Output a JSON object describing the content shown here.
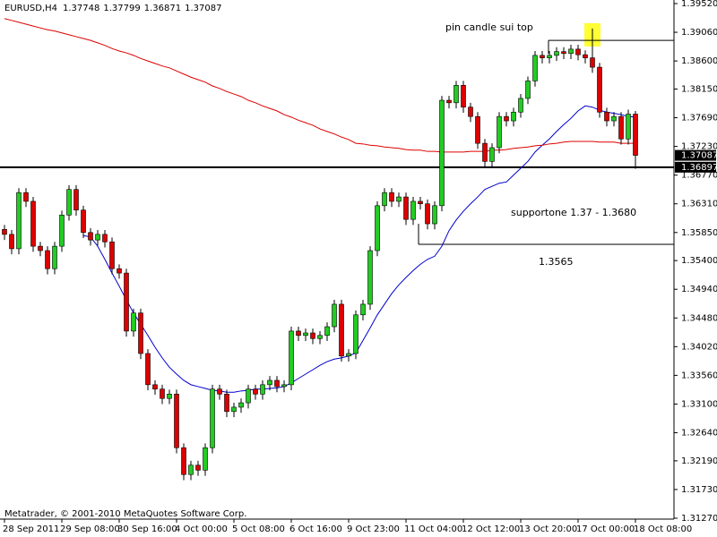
{
  "chart_data": {
    "type": "candlestick",
    "symbol": "EURUSD,H4",
    "footer": "Metatrader, © 2001-2010 MetaQuotes Software Corp.",
    "annotations": [
      "pin candle sui top",
      "supportone 1.37 - 1.3680",
      "1.3565"
    ],
    "categories": [
      "28 Sep 2011",
      null,
      null,
      null,
      null,
      null,
      null,
      null,
      "29 Sep 08:00",
      null,
      null,
      null,
      null,
      null,
      null,
      null,
      "30 Sep 16:00",
      null,
      null,
      null,
      null,
      null,
      null,
      null,
      "4 Oct 00:00",
      null,
      null,
      null,
      null,
      null,
      null,
      null,
      "5 Oct 08:00",
      null,
      null,
      null,
      null,
      null,
      null,
      null,
      "6 Oct 16:00",
      null,
      null,
      null,
      null,
      null,
      null,
      null,
      "9 Oct 23:00",
      null,
      null,
      null,
      null,
      null,
      null,
      null,
      "11 Oct 04:00",
      null,
      null,
      null,
      null,
      null,
      null,
      null,
      "12 Oct 12:00",
      null,
      null,
      null,
      null,
      null,
      null,
      null,
      "13 Oct 20:00",
      null,
      null,
      null,
      null,
      null,
      null,
      null,
      "17 Oct 00:00",
      null,
      null,
      null,
      null,
      null,
      null,
      null,
      "18 Oct 08:00"
    ],
    "open": [
      1.359,
      1.3582,
      1.3559,
      1.3649,
      1.3635,
      1.3563,
      1.3556,
      1.3527,
      1.3563,
      1.3613,
      1.3654,
      1.3621,
      1.3585,
      1.3573,
      1.3582,
      1.357,
      1.3527,
      1.352,
      1.3427,
      1.3456,
      1.3391,
      1.3341,
      1.3334,
      1.3319,
      1.3326,
      1.324,
      1.3197,
      1.3212,
      1.3204,
      1.324,
      1.3334,
      1.3326,
      1.3298,
      1.3305,
      1.3312,
      1.3334,
      1.3326,
      1.3341,
      1.3348,
      1.3338,
      1.3341,
      1.3427,
      1.342,
      1.3424,
      1.3415,
      1.342,
      1.3434,
      1.347,
      1.3387,
      1.3391,
      1.3453,
      1.347,
      1.3556,
      1.3628,
      1.3649,
      1.3635,
      1.3642,
      1.3606,
      1.3635,
      1.3631,
      1.3599,
      1.3628,
      1.3797,
      1.3793,
      1.3821,
      1.3786,
      1.3771,
      1.3728,
      1.3699,
      1.3721,
      1.3771,
      1.3764,
      1.3778,
      1.38,
      1.3828,
      1.3869,
      1.3865,
      1.3869,
      1.3875,
      1.3872,
      1.3879,
      1.387,
      1.3865,
      1.385,
      1.3778,
      1.3764,
      1.3771,
      1.3735,
      1.37748
    ],
    "high": [
      1.3597,
      1.3589,
      1.3656,
      1.3656,
      1.3642,
      1.357,
      1.3563,
      1.357,
      1.362,
      1.3661,
      1.3661,
      1.3628,
      1.3592,
      1.3589,
      1.3589,
      1.3577,
      1.3534,
      1.3527,
      1.3463,
      1.3463,
      1.3398,
      1.3348,
      1.3341,
      1.3333,
      1.3333,
      1.3247,
      1.3219,
      1.3219,
      1.3247,
      1.3341,
      1.3341,
      1.3333,
      1.3312,
      1.3319,
      1.3341,
      1.3341,
      1.3348,
      1.3355,
      1.3355,
      1.3348,
      1.3434,
      1.3434,
      1.3431,
      1.3431,
      1.3427,
      1.3441,
      1.3477,
      1.3477,
      1.3398,
      1.346,
      1.3477,
      1.3563,
      1.3635,
      1.3656,
      1.3656,
      1.3649,
      1.3649,
      1.3642,
      1.3642,
      1.3638,
      1.3635,
      1.3804,
      1.3804,
      1.3828,
      1.3828,
      1.3793,
      1.3778,
      1.3735,
      1.3728,
      1.3778,
      1.3778,
      1.3785,
      1.3807,
      1.3835,
      1.3876,
      1.3876,
      1.3876,
      1.3882,
      1.3882,
      1.3886,
      1.3886,
      1.3877,
      1.3912,
      1.3857,
      1.3785,
      1.3778,
      1.3778,
      1.3782,
      1.37799
    ],
    "low": [
      1.3573,
      1.355,
      1.355,
      1.3626,
      1.3554,
      1.3547,
      1.3518,
      1.3518,
      1.3554,
      1.3604,
      1.3612,
      1.3576,
      1.3564,
      1.3564,
      1.3561,
      1.3518,
      1.3511,
      1.3418,
      1.3418,
      1.3382,
      1.3332,
      1.3325,
      1.331,
      1.331,
      1.3231,
      1.3188,
      1.3188,
      1.3195,
      1.3195,
      1.3231,
      1.3317,
      1.3289,
      1.3289,
      1.3296,
      1.3303,
      1.3317,
      1.3317,
      1.3332,
      1.3329,
      1.3329,
      1.3332,
      1.3411,
      1.3411,
      1.3406,
      1.3406,
      1.3411,
      1.3425,
      1.3378,
      1.3378,
      1.3382,
      1.3444,
      1.3461,
      1.3547,
      1.3619,
      1.3626,
      1.3626,
      1.3597,
      1.3597,
      1.3622,
      1.359,
      1.359,
      1.3619,
      1.3784,
      1.3784,
      1.3777,
      1.3762,
      1.3719,
      1.369,
      1.369,
      1.3712,
      1.3755,
      1.3755,
      1.3769,
      1.3791,
      1.3819,
      1.3856,
      1.3856,
      1.386,
      1.3863,
      1.3863,
      1.3861,
      1.3856,
      1.3841,
      1.3769,
      1.3755,
      1.3755,
      1.3726,
      1.3726,
      1.36871
    ],
    "close": [
      1.3582,
      1.3559,
      1.3649,
      1.3635,
      1.3563,
      1.3556,
      1.3527,
      1.3563,
      1.3613,
      1.3654,
      1.3621,
      1.3585,
      1.3573,
      1.3582,
      1.357,
      1.3527,
      1.352,
      1.3427,
      1.3456,
      1.3391,
      1.3341,
      1.3334,
      1.3319,
      1.3326,
      1.324,
      1.3197,
      1.3212,
      1.3204,
      1.324,
      1.3334,
      1.3326,
      1.3298,
      1.3305,
      1.3312,
      1.3334,
      1.3326,
      1.3341,
      1.3348,
      1.3338,
      1.3341,
      1.3427,
      1.342,
      1.3424,
      1.3415,
      1.342,
      1.3434,
      1.347,
      1.3387,
      1.3391,
      1.3453,
      1.347,
      1.3556,
      1.3628,
      1.3649,
      1.3635,
      1.3642,
      1.3606,
      1.3635,
      1.3631,
      1.3599,
      1.3628,
      1.3797,
      1.3793,
      1.3821,
      1.3786,
      1.3771,
      1.3728,
      1.3699,
      1.3721,
      1.3771,
      1.3764,
      1.3778,
      1.38,
      1.3828,
      1.3869,
      1.3865,
      1.3869,
      1.3875,
      1.3872,
      1.3879,
      1.387,
      1.3865,
      1.385,
      1.3778,
      1.3764,
      1.3771,
      1.3735,
      1.37748,
      1.37087
    ],
    "up_color": "#22cc22",
    "down_color": "#dd0000",
    "lines": [
      {
        "color": "#0000cc",
        "values": [
          null,
          null,
          null,
          null,
          null,
          null,
          null,
          null,
          null,
          null,
          null,
          1.358,
          1.3578,
          1.3563,
          1.3542,
          1.352,
          1.3499,
          1.3477,
          1.3456,
          1.3438,
          1.342,
          1.3401,
          1.3384,
          1.3369,
          1.3358,
          1.3348,
          1.3341,
          1.3338,
          1.3335,
          1.3332,
          1.3331,
          1.3329,
          1.3329,
          1.3331,
          1.3332,
          1.3334,
          1.3334,
          1.3335,
          1.3336,
          1.3338,
          1.3344,
          1.3351,
          1.3358,
          1.3365,
          1.3372,
          1.3378,
          1.3382,
          1.3384,
          1.3387,
          1.3392,
          1.3412,
          1.3432,
          1.3453,
          1.347,
          1.3487,
          1.3501,
          1.3513,
          1.3524,
          1.3534,
          1.3542,
          1.3547,
          1.3563,
          1.3588,
          1.3605,
          1.3619,
          1.3631,
          1.3642,
          1.3654,
          1.3659,
          1.3664,
          1.3666,
          1.3677,
          1.3688,
          1.3699,
          1.3714,
          1.3725,
          1.3735,
          1.3747,
          1.3758,
          1.3768,
          1.378,
          1.3788,
          1.3786,
          1.3781,
          1.3778,
          1.3776,
          1.3774,
          1.3771,
          1.377
        ]
      },
      {
        "color": "#dd0000",
        "values": [
          1.3928,
          1.3925,
          1.3922,
          1.3919,
          1.3916,
          1.3913,
          1.391,
          1.3908,
          1.3905,
          1.3902,
          1.3899,
          1.3896,
          1.3893,
          1.3889,
          1.3885,
          1.388,
          1.3876,
          1.3873,
          1.3869,
          1.3864,
          1.386,
          1.3856,
          1.3852,
          1.3849,
          1.3844,
          1.3839,
          1.3834,
          1.383,
          1.3826,
          1.382,
          1.3816,
          1.3811,
          1.3807,
          1.3803,
          1.3797,
          1.3793,
          1.3788,
          1.3784,
          1.378,
          1.3774,
          1.377,
          1.3765,
          1.3761,
          1.3757,
          1.3751,
          1.3747,
          1.3743,
          1.3738,
          1.3734,
          1.3728,
          1.3727,
          1.3725,
          1.3724,
          1.3722,
          1.3721,
          1.372,
          1.3718,
          1.3717,
          1.3717,
          1.3715,
          1.3715,
          1.3714,
          1.3714,
          1.3714,
          1.3714,
          1.3715,
          1.3715,
          1.3715,
          1.3717,
          1.3717,
          1.3718,
          1.372,
          1.3721,
          1.3722,
          1.3724,
          1.3725,
          1.3727,
          1.3728,
          1.373,
          1.3731,
          1.3731,
          1.3731,
          1.3731,
          1.373,
          1.373,
          1.373,
          1.3728,
          1.3728,
          1.3728
        ]
      }
    ],
    "levels": [
      1.36897,
      1.3893,
      1.3566
    ],
    "ylim": [
      1.3127,
      1.3952
    ],
    "yticks": [
      {
        "value": 1.3952,
        "label": "1.39520"
      },
      {
        "value": 1.3906,
        "label": "1.39060"
      },
      {
        "value": 1.386,
        "label": "1.38600"
      },
      {
        "value": 1.3815,
        "label": "1.38150"
      },
      {
        "value": 1.3769,
        "label": "1.37690"
      },
      {
        "value": 1.3723,
        "label": "1.37230"
      },
      {
        "value": 1.3677,
        "label": "1.36770"
      },
      {
        "value": 1.3631,
        "label": "1.36310"
      },
      {
        "value": 1.3585,
        "label": "1.35850"
      },
      {
        "value": 1.354,
        "label": "1.35400"
      },
      {
        "value": 1.3494,
        "label": "1.34940"
      },
      {
        "value": 1.3448,
        "label": "1.34480"
      },
      {
        "value": 1.3402,
        "label": "1.34020"
      },
      {
        "value": 1.3356,
        "label": "1.33560"
      },
      {
        "value": 1.331,
        "label": "1.33100"
      },
      {
        "value": 1.3264,
        "label": "1.32640"
      },
      {
        "value": 1.3219,
        "label": "1.32190"
      },
      {
        "value": 1.3173,
        "label": "1.31730"
      },
      {
        "value": 1.3127,
        "label": "1.31270"
      }
    ]
  }
}
